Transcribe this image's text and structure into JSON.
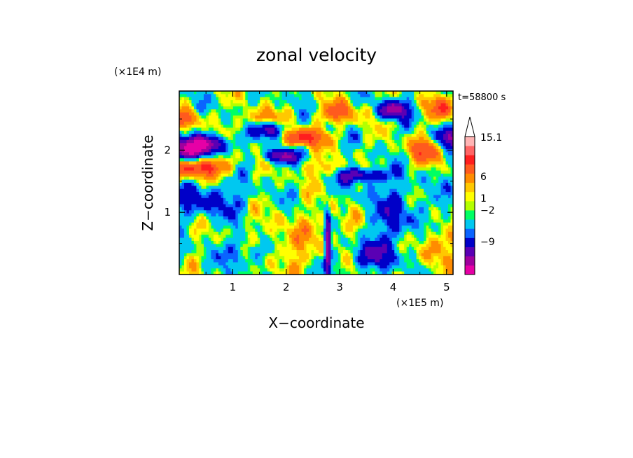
{
  "chart_data": {
    "type": "heatmap",
    "title": "zonal velocity",
    "xlabel": "X−coordinate",
    "ylabel": "Z−coordinate",
    "x_unit": "(×1E5 m)",
    "y_unit": "(×1E4 m)",
    "time_label": "t=58800 s",
    "xlim": [
      0,
      5.12
    ],
    "ylim": [
      0,
      2.95
    ],
    "x_ticks": [
      1,
      2,
      3,
      4,
      5
    ],
    "y_ticks": [
      1,
      2
    ],
    "x_tick_labels": [
      "1",
      "2",
      "3",
      "4",
      "5"
    ],
    "y_tick_labels": [
      "1",
      "2"
    ],
    "colorbar": {
      "colors": [
        "#e600a6",
        "#a0009e",
        "#5a00b4",
        "#0000c8",
        "#0a64ff",
        "#00c8f0",
        "#00ff64",
        "#b4ff00",
        "#ffff00",
        "#ffc800",
        "#ff8c00",
        "#ff5a1e",
        "#ff1e1e",
        "#ff6464",
        "#ffb4b4"
      ],
      "labels": [
        {
          "text": "15.1",
          "level": 15.1
        },
        {
          "text": "6",
          "level": 6
        },
        {
          "text": "1",
          "level": 1
        },
        {
          "text": "−2",
          "level": -2
        },
        {
          "text": "−9",
          "level": -9
        }
      ],
      "extend_max": true
    }
  }
}
